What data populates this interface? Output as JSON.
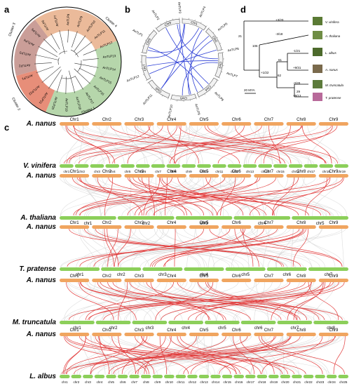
{
  "panels": {
    "a": "a",
    "b": "b",
    "c": "c",
    "d": "d"
  },
  "panel_a": {
    "clusters": [
      "Cluster 1",
      "Cluster 2",
      "Cluster 3",
      "Cluster 4"
    ],
    "genes": [
      "AnTLP1",
      "AnTLP2",
      "AnTLP3",
      "AnTLP4",
      "AnTLP5",
      "AnTLP6",
      "AnTLP7",
      "AnTLP8",
      "AnTLP9",
      "AnTLP10",
      "AnTLP11",
      "AnTLP12",
      "AnTLP13",
      "AnTLP14",
      "AnTLP15",
      "AnTLP16",
      "AnTLP17",
      "AnTLP18",
      "AnTLP19",
      "AnTLP20",
      "AnTLP21",
      "AnTLP22"
    ],
    "colors": {
      "c1": "#a9cf9c",
      "c2": "#e4826a",
      "c3": "#c4938d",
      "c4": "#e9b28f"
    }
  },
  "panel_b": {
    "chromosomes": [
      "Chr1",
      "Chr2",
      "Chr3",
      "Chr4",
      "Chr5",
      "Chr6",
      "Chr7",
      "Chr8",
      "Chr9"
    ],
    "gene_labels": [
      "AnTLP1",
      "AnTLP2",
      "AnTLP3",
      "AnTLP4",
      "AnTLP5",
      "AnTLP6",
      "AnTLP7",
      "AnTLP8",
      "AnTLP9",
      "AnTLP10",
      "AnTLP11",
      "AnTLP12"
    ],
    "link_color": "#2d3fd6"
  },
  "panel_d": {
    "species": [
      "V. vinifera",
      "A. thaliana",
      "L. albus",
      "A. nanus",
      "M. truncatula",
      "T. pratense"
    ],
    "gains": [
      "+3/20",
      "-3/18",
      "-1/21",
      "+9/31",
      "-2/20",
      "+9/13"
    ],
    "node_labels": [
      "21",
      "106",
      "61",
      "62",
      "29"
    ],
    "root_label": "+1/22",
    "scale": "20 MYA"
  },
  "panel_c": {
    "rows": [
      {
        "top": "A. nanus",
        "bottom": "V. vinifera",
        "top_chrs": [
          "Chr1",
          "Chr2",
          "Chr3",
          "Chr4",
          "Chr5",
          "Chr6",
          "Chr7",
          "Chr8",
          "Chr9"
        ],
        "bottom_chrs": [
          "chr1",
          "chr2",
          "chr3",
          "chr4",
          "chr5",
          "chr6",
          "chr7",
          "chr8",
          "chr9",
          "chr10",
          "chr11",
          "chr12",
          "chr13",
          "chr14",
          "chr15",
          "chr16",
          "chr17",
          "chr18",
          "chr19"
        ]
      },
      {
        "top": "A. nanus",
        "bottom": "A. thaliana",
        "top_chrs": [
          "Chr1",
          "Chr2",
          "Chr3",
          "Chr4",
          "Chr5",
          "Chr6",
          "Chr7",
          "Chr8",
          "Chr9"
        ],
        "bottom_chrs": [
          "chr1",
          "chr2",
          "chr3",
          "chr4",
          "chr5"
        ]
      },
      {
        "top": "A. nanus",
        "bottom": "T. pratense",
        "top_chrs": [
          "Chr1",
          "Chr2",
          "Chr3",
          "Chr4",
          "Chr5",
          "Chr6",
          "Chr7",
          "Chr8",
          "Chr9"
        ],
        "bottom_chrs": [
          "chr1",
          "chr2",
          "chr3",
          "chr4",
          "chr5",
          "chr6",
          "chr7"
        ]
      },
      {
        "top": "A. nanus",
        "bottom": "M. truncatula",
        "top_chrs": [
          "Chr1",
          "Chr2",
          "Chr3",
          "Chr4",
          "Chr5",
          "Chr6",
          "Chr7",
          "Chr8",
          "Chr9"
        ],
        "bottom_chrs": [
          "chr1",
          "chr2",
          "chr3",
          "chr4",
          "chr5",
          "chr6",
          "chr7",
          "chr8"
        ]
      },
      {
        "top": "A. nanus",
        "bottom": "L. albus",
        "top_chrs": [
          "Chr1",
          "Chr2",
          "Chr3",
          "Chr4",
          "Chr5",
          "Chr6",
          "Chr7",
          "Chr8",
          "Chr9"
        ],
        "bottom_chrs": [
          "chr1",
          "chr2",
          "chr3",
          "chr4",
          "chr5",
          "chr6",
          "chr7",
          "chr8",
          "chr9",
          "chr10",
          "chr11",
          "chr12",
          "chr13",
          "chr14",
          "chr15",
          "chr16",
          "chr17",
          "chr18",
          "chr19",
          "chr20",
          "chr21",
          "chr22",
          "chr23",
          "chr24",
          "chr25"
        ]
      }
    ],
    "colors": {
      "top_bar": "#f0a560",
      "bottom_bar": "#8ccf5a",
      "link": "#e23a3a",
      "bg_link": "#cfcfcf"
    }
  }
}
